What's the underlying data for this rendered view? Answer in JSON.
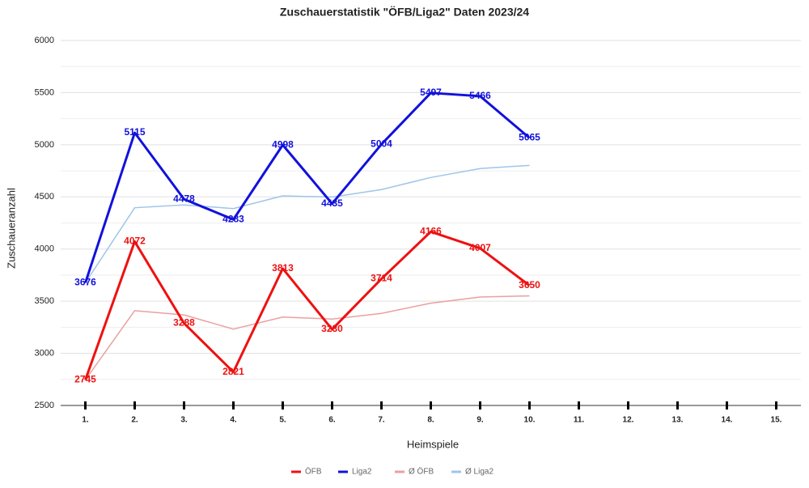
{
  "chart_data": {
    "type": "line",
    "title": "Zuschauerstatistik \"ÖFB/Liga2\" Daten 2023/24",
    "x_label": "Heimspiele",
    "y_label": "Zuschaueranzahl",
    "categories": [
      "1.",
      "2.",
      "3.",
      "4.",
      "5.",
      "6.",
      "7.",
      "8.",
      "9.",
      "10.",
      "11.",
      "12.",
      "13.",
      "14.",
      "15."
    ],
    "series": [
      {
        "name": "ÖFB",
        "color": "#ee1111",
        "values": [
          2745,
          4072,
          3288,
          2821,
          3813,
          3230,
          3714,
          4166,
          4007,
          3650,
          null,
          null,
          null,
          null,
          null
        ],
        "data_labels": true,
        "width": 3
      },
      {
        "name": "Liga2",
        "color": "#1111dd",
        "values": [
          3676,
          5115,
          4478,
          4283,
          4998,
          4435,
          5004,
          5497,
          5466,
          5065,
          null,
          null,
          null,
          null,
          null
        ],
        "data_labels": true,
        "width": 3
      },
      {
        "name": "Ø ÖFB",
        "color": "#eaa0a0",
        "values": [
          2745,
          3409,
          3368,
          3232,
          3348,
          3328,
          3383,
          3481,
          3540,
          3551,
          null,
          null,
          null,
          null,
          null
        ],
        "data_labels": false,
        "width": 1.5
      },
      {
        "name": "Ø Liga2",
        "color": "#9fc5e8",
        "values": [
          3676,
          4396,
          4423,
          4388,
          4510,
          4498,
          4570,
          4686,
          4772,
          4802,
          null,
          null,
          null,
          null,
          null
        ],
        "data_labels": false,
        "width": 1.5
      }
    ],
    "ylim": [
      2500,
      6000
    ],
    "yticks": [
      2500,
      3000,
      3500,
      4000,
      4500,
      5000,
      5500,
      6000
    ],
    "grid": true,
    "legend": "bottom"
  }
}
